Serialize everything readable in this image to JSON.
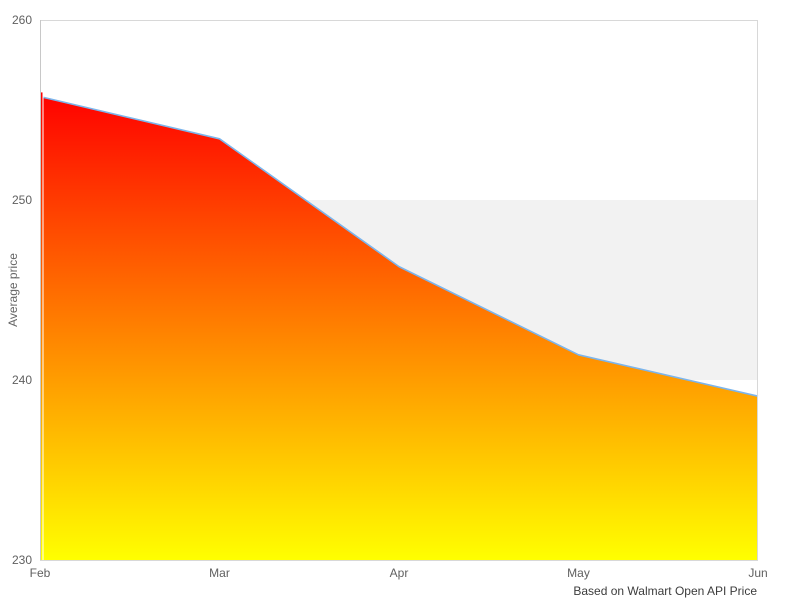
{
  "chart_data": {
    "type": "area",
    "categories": [
      "Feb",
      "Mar",
      "Apr",
      "May",
      "Jun"
    ],
    "values": [
      255.7,
      253.4,
      246.3,
      241.4,
      239.1
    ],
    "title": "",
    "xlabel": "",
    "ylabel": "Average price",
    "ylim": [
      230,
      260
    ],
    "yticks": [
      230,
      240,
      250,
      260
    ],
    "grid": false,
    "legend": "none",
    "plot_band": {
      "from": 240,
      "to": 250,
      "color": "#f2f2f2"
    },
    "credits": "Based on Walmart Open API Price",
    "style": {
      "line_color": "#7cb5ec",
      "gradient_top": "#ff0000",
      "gradient_bottom": "#ffff00",
      "border_color": "#d8d8d8",
      "axis_line_color": "#c8c8c8",
      "tick_label_color": "#606060",
      "axis_title_color": "#666666",
      "credits_color": "#3c3c3c",
      "background": "#ffffff"
    }
  }
}
